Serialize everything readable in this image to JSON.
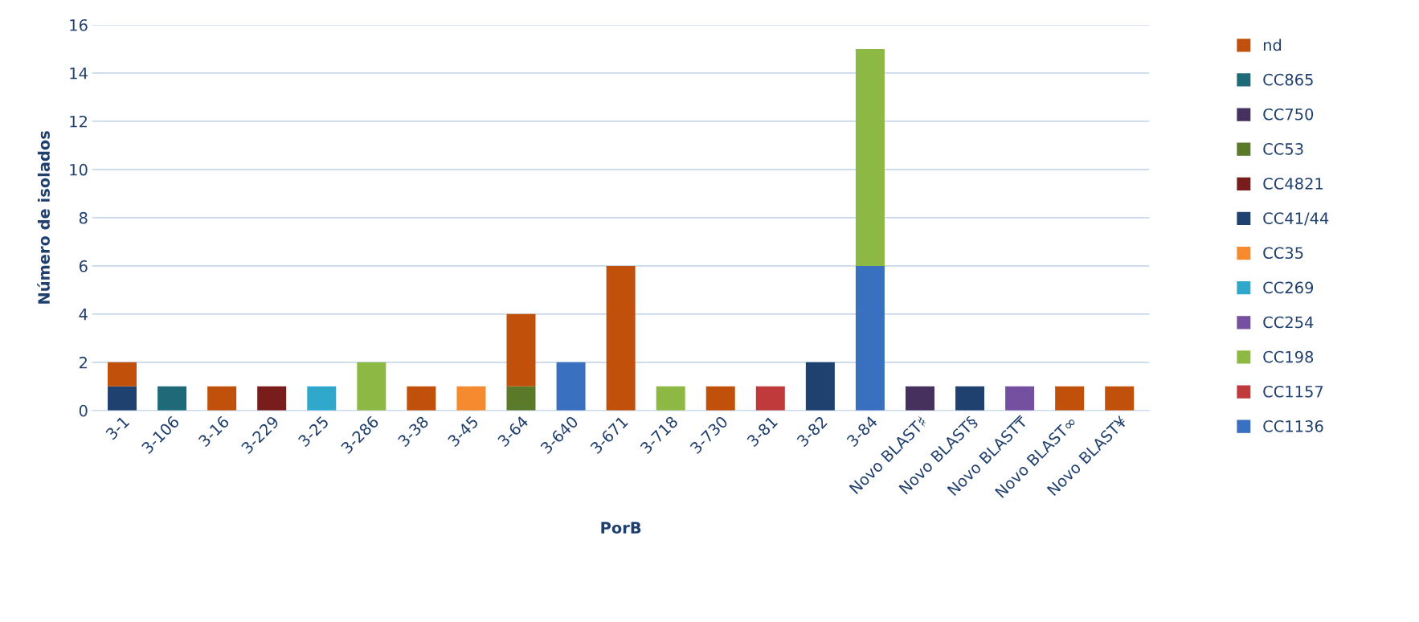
{
  "chart_data": {
    "type": "bar",
    "stacked": true,
    "xlabel": "PorB",
    "ylabel": "Número de isolados",
    "categories": [
      "3-1",
      "3-106",
      "3-16",
      "3-229",
      "3-25",
      "3-286",
      "3-38",
      "3-45",
      "3-64",
      "3-640",
      "3-671",
      "3-718",
      "3-730",
      "3-81",
      "3-82",
      "3-84",
      "Novo BLAST♯",
      "Novo BLAST§",
      "Novo BLAST₸",
      "Novo BLAST∞",
      "Novo BLAST¥"
    ],
    "series": [
      {
        "name": "CC1136",
        "color": "#3a70c0",
        "values": [
          null,
          null,
          null,
          null,
          null,
          null,
          null,
          null,
          null,
          2,
          null,
          null,
          null,
          null,
          null,
          6,
          null,
          null,
          null,
          null,
          null
        ]
      },
      {
        "name": "CC1157",
        "color": "#c0393b",
        "values": [
          null,
          null,
          null,
          null,
          null,
          null,
          null,
          null,
          null,
          null,
          null,
          null,
          null,
          1,
          null,
          null,
          null,
          null,
          null,
          null,
          null
        ]
      },
      {
        "name": "CC198",
        "color": "#8db843",
        "values": [
          null,
          null,
          null,
          null,
          null,
          2,
          null,
          null,
          null,
          null,
          null,
          1,
          null,
          null,
          null,
          9,
          null,
          null,
          null,
          null,
          null
        ]
      },
      {
        "name": "CC254",
        "color": "#7550a0",
        "values": [
          null,
          null,
          null,
          null,
          null,
          null,
          null,
          null,
          null,
          null,
          null,
          null,
          null,
          null,
          null,
          null,
          null,
          null,
          1,
          null,
          null
        ]
      },
      {
        "name": "CC269",
        "color": "#30a8cc",
        "values": [
          null,
          null,
          null,
          null,
          1,
          null,
          null,
          null,
          null,
          null,
          null,
          null,
          null,
          null,
          null,
          null,
          null,
          null,
          null,
          null,
          null
        ]
      },
      {
        "name": "CC35",
        "color": "#f58a2e",
        "values": [
          null,
          null,
          null,
          null,
          null,
          null,
          null,
          1,
          null,
          null,
          null,
          null,
          null,
          null,
          null,
          null,
          null,
          null,
          null,
          null,
          null
        ]
      },
      {
        "name": "CC41/44",
        "color": "#1e4170",
        "values": [
          1,
          null,
          null,
          null,
          null,
          null,
          null,
          null,
          null,
          null,
          null,
          null,
          null,
          null,
          2,
          null,
          null,
          1,
          null,
          null,
          null
        ]
      },
      {
        "name": "CC4821",
        "color": "#781c1c",
        "values": [
          null,
          null,
          null,
          1,
          null,
          null,
          null,
          null,
          null,
          null,
          null,
          null,
          null,
          null,
          null,
          null,
          null,
          null,
          null,
          null,
          null
        ]
      },
      {
        "name": "CC53",
        "color": "#5a7a2a",
        "values": [
          null,
          null,
          null,
          null,
          null,
          null,
          null,
          null,
          1,
          null,
          null,
          null,
          null,
          null,
          null,
          null,
          null,
          null,
          null,
          null,
          null
        ]
      },
      {
        "name": "CC750",
        "color": "#45305e",
        "values": [
          null,
          null,
          null,
          null,
          null,
          null,
          null,
          null,
          null,
          null,
          null,
          null,
          null,
          null,
          null,
          null,
          1,
          null,
          null,
          null,
          null
        ]
      },
      {
        "name": "CC865",
        "color": "#1e6a78",
        "values": [
          null,
          1,
          null,
          null,
          null,
          null,
          null,
          null,
          null,
          null,
          null,
          null,
          null,
          null,
          null,
          null,
          null,
          null,
          null,
          null,
          null
        ]
      },
      {
        "name": "nd",
        "color": "#c0500a",
        "values": [
          1,
          null,
          1,
          null,
          null,
          null,
          1,
          null,
          3,
          null,
          6,
          null,
          1,
          null,
          null,
          null,
          null,
          null,
          null,
          1,
          1
        ]
      }
    ],
    "ylim": [
      0,
      16
    ],
    "yticks": [
      0,
      2,
      4,
      6,
      8,
      10,
      12,
      14,
      16
    ],
    "grid": "y",
    "legend": "right"
  }
}
